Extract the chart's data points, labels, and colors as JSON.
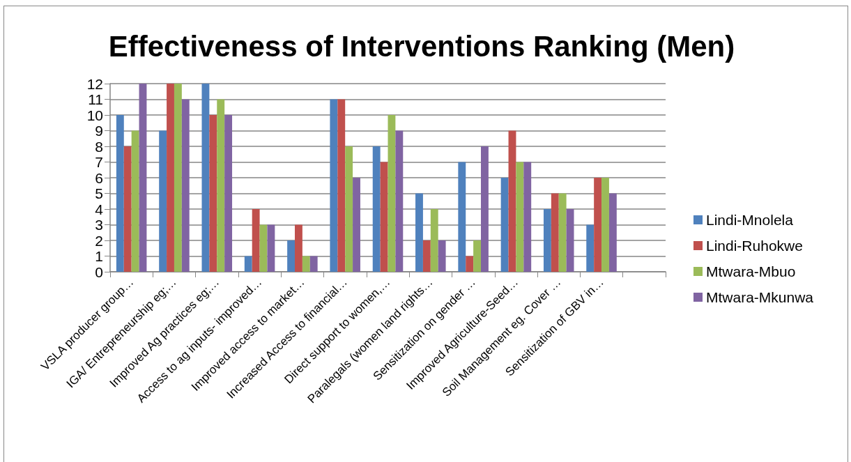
{
  "chart_data": {
    "type": "bar",
    "title": "Effectiveness of Interventions Ranking (Men)",
    "categories": [
      "VSLA producer group…",
      "IGA/ Entrepreneurship eg;…",
      "Improved Ag practices eg;…",
      "Access to ag inputs- improved…",
      "Improved access to market…",
      "Increased Access to financial…",
      "Direct support to women,…",
      "Paralegals (women land rights…",
      "Sensitization on gender …",
      "Improved Agriculture-Seed…",
      "Soil Management eg. Cover …",
      "Sensitization of GBV in…",
      null
    ],
    "series": [
      {
        "name": "Lindi-Mnolela",
        "color": "#4f81bd",
        "values": [
          10,
          9,
          12,
          1,
          2,
          11,
          8,
          5,
          7,
          6,
          4,
          3,
          null
        ]
      },
      {
        "name": "Lindi-Ruhokwe",
        "color": "#c0504d",
        "values": [
          8,
          12,
          10,
          4,
          3,
          11,
          7,
          2,
          1,
          9,
          5,
          6,
          null
        ]
      },
      {
        "name": "Mtwara-Mbuo",
        "color": "#9bbb59",
        "values": [
          9,
          12,
          11,
          3,
          1,
          8,
          10,
          4,
          2,
          7,
          5,
          6,
          null
        ]
      },
      {
        "name": "Mtwara-Mkunwa",
        "color": "#8064a2",
        "values": [
          12,
          11,
          10,
          3,
          1,
          6,
          9,
          2,
          8,
          7,
          4,
          5,
          null
        ]
      }
    ],
    "ylim": [
      0,
      12
    ],
    "yticks": [
      0,
      1,
      2,
      3,
      4,
      5,
      6,
      7,
      8,
      9,
      10,
      11,
      12
    ],
    "grid": "y",
    "legend": "right"
  }
}
